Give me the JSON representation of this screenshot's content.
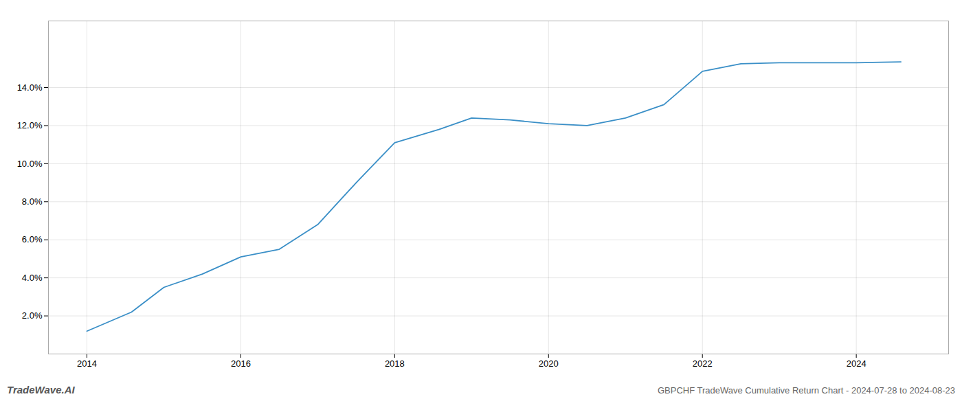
{
  "chart_data": {
    "type": "line",
    "title": "GBPCHF TradeWave Cumulative Return Chart - 2024-07-28 to 2024-08-23",
    "annotations": [
      "TradeWave.AI"
    ],
    "x": [
      2014.0,
      2014.58,
      2015.0,
      2015.5,
      2016.0,
      2016.5,
      2017.0,
      2017.5,
      2018.0,
      2018.58,
      2019.0,
      2019.5,
      2020.0,
      2020.5,
      2021.0,
      2021.5,
      2022.0,
      2022.5,
      2023.0,
      2023.5,
      2024.0,
      2024.58
    ],
    "values": [
      1.2,
      2.2,
      3.5,
      4.2,
      5.1,
      5.5,
      6.8,
      9.0,
      11.1,
      11.8,
      12.4,
      12.3,
      12.1,
      12.0,
      12.4,
      13.1,
      14.85,
      15.25,
      15.3,
      15.3,
      15.3,
      15.35
    ],
    "color": "#3a8fc7",
    "xlim": [
      2013.5,
      2025.2
    ],
    "ylim": [
      0.0,
      17.5
    ],
    "xticks": [
      2014,
      2016,
      2018,
      2020,
      2022,
      2024
    ],
    "yticks": [
      {
        "value": 2.0,
        "label": "2.0%"
      },
      {
        "value": 4.0,
        "label": "4.0%"
      },
      {
        "value": 6.0,
        "label": "6.0%"
      },
      {
        "value": 8.0,
        "label": "8.0%"
      },
      {
        "value": 10.0,
        "label": "10.0%"
      },
      {
        "value": 12.0,
        "label": "12.0%"
      },
      {
        "value": 14.0,
        "label": "14.0%"
      }
    ],
    "grid": true
  }
}
